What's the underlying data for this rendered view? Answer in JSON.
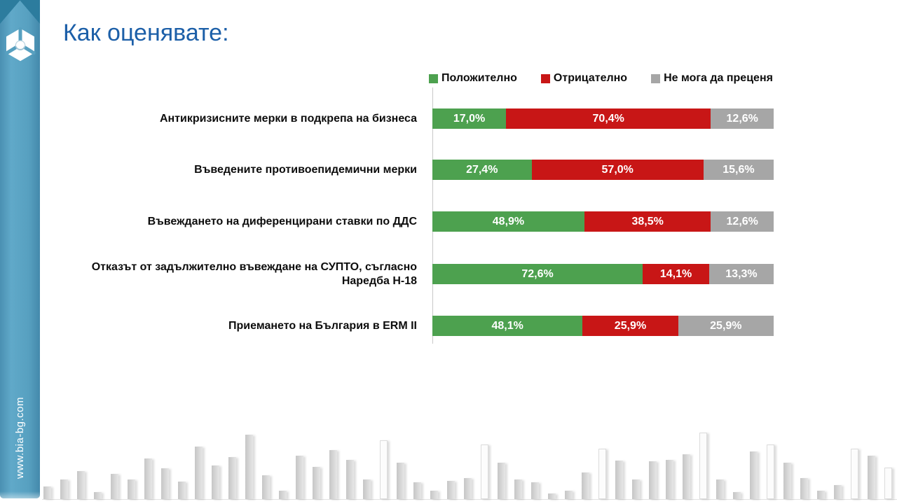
{
  "page": {
    "title": "Как оценявате:",
    "sidebar_url": "www.bia-bg.com"
  },
  "colors": {
    "sidebar_blue": "#57a0c0",
    "sidebar_fold_blue": "#2c7c9e",
    "title_blue": "#1c5fa8",
    "positive_green": "#4da14f",
    "negative_red": "#c81616",
    "neutral_gray": "#a6a6a6"
  },
  "chart_data": {
    "type": "bar",
    "orientation": "horizontal-stacked",
    "title": "Как оценявате:",
    "xlabel": "",
    "ylabel": "",
    "xlim": [
      0,
      100
    ],
    "grid": false,
    "legend_position": "top",
    "value_format": "percent-comma-decimal",
    "categories": [
      "Антикризисните мерки в подкрепа на бизнеса",
      "Въведените противоепидемични мерки",
      "Въвеждането на диференцирани ставки по ДДС",
      "Отказът от задължително въвеждане на СУПТО, съгласно Наредба Н-18",
      "Приемането на България в ERM II"
    ],
    "series": [
      {
        "name": "Положително",
        "color": "#4da14f",
        "values": [
          17.0,
          27.4,
          48.9,
          72.6,
          48.1
        ],
        "labels": [
          "17,0%",
          "27,4%",
          "48,9%",
          "72,6%",
          "48,1%"
        ]
      },
      {
        "name": "Отрицателно",
        "color": "#c81616",
        "values": [
          70.4,
          57.0,
          38.5,
          14.1,
          25.9
        ],
        "labels": [
          "70,4%",
          "57,0%",
          "38,5%",
          "14,1%",
          "25,9%"
        ]
      },
      {
        "name": "Не мога да преценя",
        "color": "#a6a6a6",
        "values": [
          12.6,
          15.6,
          12.6,
          13.3,
          25.9
        ],
        "labels": [
          "12,6%",
          "15,6%",
          "12,6%",
          "13,3%",
          "25,9%"
        ]
      }
    ]
  },
  "decor": {
    "skyline_heights": [
      18,
      28,
      40,
      10,
      36,
      28,
      58,
      44,
      25,
      75,
      48,
      60,
      92,
      34,
      12,
      62,
      46,
      70,
      56,
      28,
      84,
      52,
      24,
      12,
      26,
      30,
      78,
      52,
      28,
      24,
      8,
      12,
      38,
      72,
      55,
      28,
      54,
      56,
      64,
      95,
      28,
      10,
      68,
      78,
      52,
      30,
      12,
      20,
      72,
      62,
      45,
      30
    ],
    "skyline_outline_indices": [
      20,
      26,
      33,
      39,
      43,
      48,
      50
    ]
  }
}
